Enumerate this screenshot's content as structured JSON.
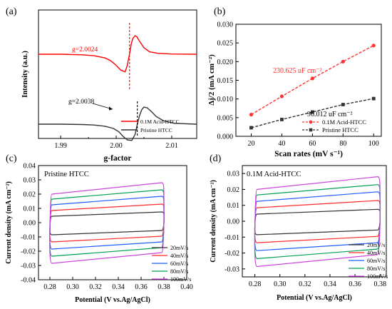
{
  "chart_data": [
    {
      "panel": "(a)",
      "type": "line",
      "xlabel": "g-factor",
      "ylabel": "Intensity (a.u.)",
      "xticks": [
        "1.99",
        "2.00",
        "2.01"
      ],
      "xlim": [
        1.986,
        2.0145
      ],
      "series": [
        {
          "name": "0.1M Acid-HTCC",
          "color": "#ff0000",
          "g_value": 2.0024,
          "label": "g=2.0024",
          "x": [
            1.986,
            1.99,
            1.994,
            1.996,
            1.998,
            1.999,
            2.0,
            2.0008,
            2.0016,
            2.002,
            2.0024,
            2.0027,
            2.003,
            2.0034,
            2.0037,
            2.0042,
            2.005,
            2.006,
            2.0075,
            2.01,
            2.0145
          ],
          "y": [
            0,
            0,
            -0.03,
            -0.08,
            -0.2,
            -0.35,
            -0.6,
            -0.85,
            -0.95,
            -0.6,
            0,
            0.55,
            0.85,
            1,
            0.95,
            0.7,
            0.35,
            0.13,
            0.05,
            0.01,
            0
          ]
        },
        {
          "name": "Pristine HTCC",
          "color": "#333333",
          "g_value": 2.0038,
          "label": "g=2.0038",
          "x": [
            1.986,
            1.99,
            1.994,
            1.996,
            1.998,
            1.9995,
            2.0005,
            2.0012,
            2.002,
            2.0028,
            2.0034,
            2.0038,
            2.0042,
            2.0046,
            2.005,
            2.0056,
            2.0063,
            2.0072,
            2.0085,
            2.0105,
            2.0145
          ],
          "y": [
            0,
            0,
            -0.02,
            -0.05,
            -0.12,
            -0.25,
            -0.45,
            -0.7,
            -0.92,
            -0.95,
            -0.6,
            0,
            0.5,
            0.85,
            1,
            0.95,
            0.75,
            0.45,
            0.2,
            0.05,
            0
          ]
        }
      ]
    },
    {
      "panel": "(b)",
      "type": "line",
      "xlabel": "Scan rates (mV s⁻¹)",
      "ylabel": "Δj/2 (mA cm⁻²)",
      "xlim": [
        10,
        105
      ],
      "ylim": [
        0,
        0.03
      ],
      "xticks": [
        20,
        40,
        60,
        80,
        100
      ],
      "yticks": [
        "0.000",
        "0.005",
        "0.010",
        "0.015",
        "0.020",
        "0.025",
        "0.030"
      ],
      "legend_position": "bottom-right",
      "series": [
        {
          "name": "0.1M Acid-HTCC",
          "color": "#ff3333",
          "marker": "circle",
          "x": [
            20,
            40,
            60,
            80,
            100
          ],
          "y": [
            0.0058,
            0.0107,
            0.0155,
            0.02,
            0.0243
          ],
          "annotation": "230.625 uF cm⁻²"
        },
        {
          "name": "Pristine HTCC",
          "color": "#333333",
          "marker": "square",
          "x": [
            20,
            40,
            60,
            80,
            100
          ],
          "y": [
            0.0023,
            0.0045,
            0.0065,
            0.0085,
            0.0101
          ],
          "annotation": "96.012 uF cm⁻²"
        }
      ]
    },
    {
      "panel": "(c)",
      "type": "line",
      "title": "Pristine HTCC",
      "xlabel": "Potential (V vs.Ag/AgCl)",
      "ylabel": "Current density (mA cm⁻²)",
      "xlim": [
        0.27,
        0.4
      ],
      "ylim": [
        -0.04,
        0.04
      ],
      "xticks": [
        "0.28",
        "0.30",
        "0.32",
        "0.34",
        "0.36",
        "0.38",
        "0.40"
      ],
      "yticks": [
        "-0.04",
        "-0.03",
        "-0.02",
        "-0.01",
        "0.00",
        "0.01",
        "0.02",
        "0.03",
        "0.04"
      ],
      "legend_position": "bottom-right",
      "series": [
        {
          "name": "20mV/s",
          "color": "#333333",
          "upper": [
            0.0045,
            0.0075
          ],
          "lower": [
            -0.0085,
            -0.0055
          ]
        },
        {
          "name": "40mV/s",
          "color": "#ff2a2a",
          "upper": [
            0.0085,
            0.013
          ],
          "lower": [
            -0.0135,
            -0.0095
          ]
        },
        {
          "name": "60mV/s",
          "color": "#1f5fff",
          "upper": [
            0.0125,
            0.0185
          ],
          "lower": [
            -0.0185,
            -0.0135
          ]
        },
        {
          "name": "80mV/s",
          "color": "#00a050",
          "upper": [
            0.0165,
            0.023
          ],
          "lower": [
            -0.0235,
            -0.0175
          ]
        },
        {
          "name": "100mV/s",
          "color": "#cc44dd",
          "upper": [
            0.02,
            0.028
          ],
          "lower": [
            -0.0285,
            -0.021
          ]
        }
      ]
    },
    {
      "panel": "(d)",
      "type": "line",
      "title": "0.1M Acid-HTCC",
      "xlabel": "Potential (V vs.Ag/AgCl)",
      "ylabel": "Current density (mA cm⁻²)",
      "xlim": [
        0.27,
        0.385
      ],
      "ylim": [
        -0.035,
        0.035
      ],
      "xticks": [
        "0.28",
        "0.30",
        "0.32",
        "0.34",
        "0.36",
        "0.38"
      ],
      "yticks": [
        "-0.03",
        "-0.02",
        "-0.01",
        "0.00",
        "0.01",
        "0.02",
        "0.03"
      ],
      "legend_position": "bottom-right",
      "series": [
        {
          "name": "20mV/s",
          "color": "#333333",
          "upper": [
            0.0045,
            0.0075
          ],
          "lower": [
            -0.0085,
            -0.0055
          ]
        },
        {
          "name": "40mV/s",
          "color": "#ff2a2a",
          "upper": [
            0.0085,
            0.013
          ],
          "lower": [
            -0.0135,
            -0.0095
          ]
        },
        {
          "name": "60mV/s",
          "color": "#1f5fff",
          "upper": [
            0.0125,
            0.0185
          ],
          "lower": [
            -0.0185,
            -0.0135
          ]
        },
        {
          "name": "80mV/s",
          "color": "#00a050",
          "upper": [
            0.0165,
            0.023
          ],
          "lower": [
            -0.0235,
            -0.0175
          ]
        },
        {
          "name": "100mV/s",
          "color": "#cc44dd",
          "upper": [
            0.02,
            0.028
          ],
          "lower": [
            -0.0285,
            -0.021
          ]
        }
      ]
    }
  ]
}
